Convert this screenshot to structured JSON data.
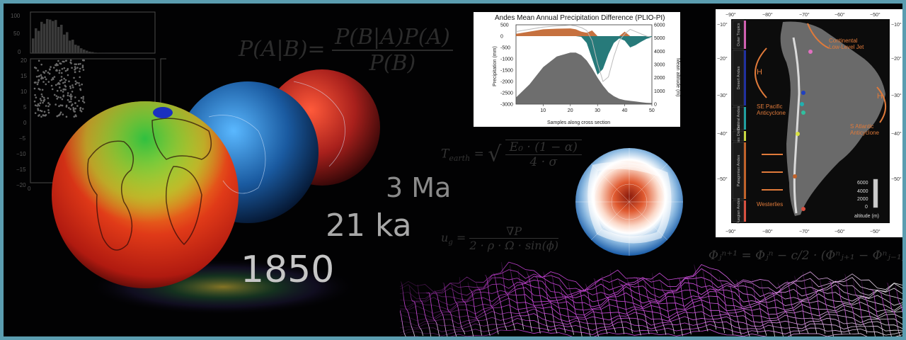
{
  "hist": {
    "yticks": [
      "100",
      "50",
      "0"
    ],
    "yticks2": [
      "20",
      "15",
      "10",
      "5",
      "0",
      "−5",
      "−10",
      "−15",
      "−20"
    ],
    "xtick0": "0"
  },
  "equations": {
    "bayes": "P(A|B) = P(B|A) P(A) / P(B)",
    "bayes_num": "P(B|A)P(A)",
    "bayes_lhs": "P(A|B)=",
    "bayes_den": "P(B)",
    "tearth_lhs": "T",
    "tearth_sub": "earth",
    "tearth_num": "E₀ · (1 − α)",
    "tearth_den": "4 · σ",
    "ug_lhs": "u",
    "ug_sub": "g",
    "ug_num": "∇P",
    "ug_den": "2 · ρ · Ω · sin(ϕ)",
    "phi": "Φⱼⁿ⁺¹ = Φⱼⁿ − c/2 · (Φⁿⱼ₊₁ − Φⁿⱼ₋₁)"
  },
  "times": {
    "t1": "3 Ma",
    "t2": "21 ka",
    "t3": "1850"
  },
  "andes_chart": {
    "title": "Andes Mean Annual Precipitation Difference (PLIO-PI)",
    "xlabel": "Samples along cross section",
    "ylabel_left": "Precipitation (mm)",
    "ylabel_right": "Mean altitude (m)"
  },
  "chart_data": {
    "type": "area",
    "title": "Andes Mean Annual Precipitation Difference (PLIO-PI)",
    "xlabel": "Samples along cross section",
    "ylabel": "Precipitation (mm)",
    "ylabel_right": "Mean altitude (m)",
    "xlim": [
      0,
      50
    ],
    "ylim": [
      -3000,
      500
    ],
    "ylim_right": [
      0,
      6000
    ],
    "xticks": [
      10,
      20,
      30,
      40,
      50
    ],
    "yticks": [
      500,
      0,
      -500,
      -1000,
      -1500,
      -2000,
      -2500,
      -3000
    ],
    "yticks_right": [
      6000,
      5000,
      4000,
      3000,
      2000,
      1000,
      0
    ],
    "series": [
      {
        "axis": "left",
        "color": "#0f6b6b",
        "x": [
          0,
          5,
          10,
          15,
          20,
          22,
          24,
          26,
          28,
          30,
          32,
          34,
          36,
          38,
          40,
          42,
          44,
          46,
          48,
          50
        ],
        "values": [
          0,
          0,
          0,
          0,
          0,
          0,
          -30,
          -300,
          -1000,
          -1700,
          -1450,
          -800,
          -300,
          -100,
          -200,
          -500,
          -400,
          -250,
          -120,
          -50
        ]
      },
      {
        "axis": "left",
        "color": "#c0622a",
        "x": [
          0,
          5,
          10,
          15,
          20,
          22,
          24,
          26,
          28,
          30,
          32,
          34,
          36,
          38,
          40,
          42,
          44,
          46,
          48,
          50
        ],
        "values": [
          100,
          200,
          300,
          330,
          340,
          300,
          200,
          150,
          250,
          0,
          0,
          0,
          0,
          0,
          200,
          0,
          0,
          0,
          0,
          0
        ]
      },
      {
        "axis": "left",
        "color": "#bbbbbb",
        "x": [
          0,
          5,
          10,
          15,
          20,
          22,
          24,
          26,
          28,
          30,
          32,
          34,
          36,
          38,
          40,
          42,
          44,
          46,
          48,
          50
        ],
        "values": [
          200,
          300,
          400,
          450,
          480,
          450,
          380,
          250,
          -200,
          -1200,
          -2000,
          -1800,
          -900,
          -200,
          100,
          300,
          200,
          100,
          0,
          -50
        ]
      },
      {
        "axis": "right",
        "color": "#555555",
        "x": [
          0,
          5,
          10,
          15,
          20,
          22,
          24,
          26,
          28,
          30,
          32,
          34,
          36,
          38,
          40,
          42,
          44,
          46,
          48,
          50
        ],
        "values": [
          500,
          1500,
          2800,
          3600,
          3900,
          3900,
          3700,
          3300,
          2700,
          2000,
          1400,
          900,
          600,
          400,
          300,
          250,
          200,
          150,
          100,
          80
        ]
      }
    ]
  },
  "map": {
    "xticks": [
      "−90°",
      "−80°",
      "−70°",
      "−60°",
      "−50°"
    ],
    "yticks": [
      "−10°",
      "−20°",
      "−30°",
      "−40°",
      "−50°"
    ],
    "regions": [
      "Outer Tropics",
      "Desert Andes",
      "Central Andes",
      "Lakes District",
      "Patagonian Andes",
      "Fuegian Andes"
    ],
    "region_colors": [
      "#d060b0",
      "#2030a0",
      "#20a0a0",
      "#c8d840",
      "#c0622a",
      "#d85040"
    ],
    "labels": {
      "llj": "Continental\nLow-Level Jet",
      "h_left": "H",
      "h_right": "H",
      "se_pacific": "SE Pacific\nAnticyclone",
      "s_atlantic": "S Atlantic\nAnticyclone",
      "westerlies": "Westerlies"
    },
    "colorbar_ticks": [
      "6000",
      "4000",
      "2000",
      "0"
    ],
    "colorbar_label": "altitude (m)",
    "accent": "#e07a3a"
  },
  "colors": {
    "frame": "#5b9db0",
    "background": "#020203"
  }
}
